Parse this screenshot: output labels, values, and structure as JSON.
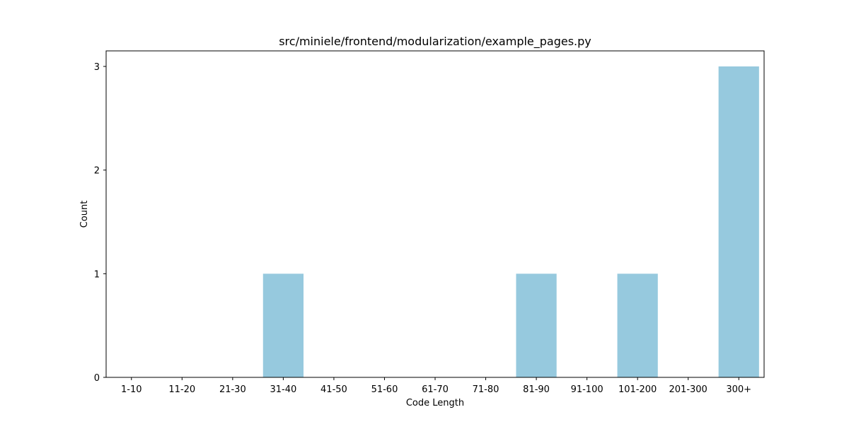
{
  "chart_data": {
    "type": "bar",
    "title": "src/miniele/frontend/modularization/example_pages.py",
    "xlabel": "Code Length",
    "ylabel": "Count",
    "categories": [
      "1-10",
      "11-20",
      "21-30",
      "31-40",
      "41-50",
      "51-60",
      "61-70",
      "71-80",
      "81-90",
      "91-100",
      "101-200",
      "201-300",
      "300+"
    ],
    "values": [
      0,
      0,
      0,
      1,
      0,
      0,
      0,
      0,
      1,
      0,
      1,
      0,
      3
    ],
    "yticks": [
      0,
      1,
      2,
      3
    ],
    "ylim": [
      0,
      3.15
    ],
    "bar_color": "#96c9de",
    "grid": false,
    "legend": "none"
  }
}
